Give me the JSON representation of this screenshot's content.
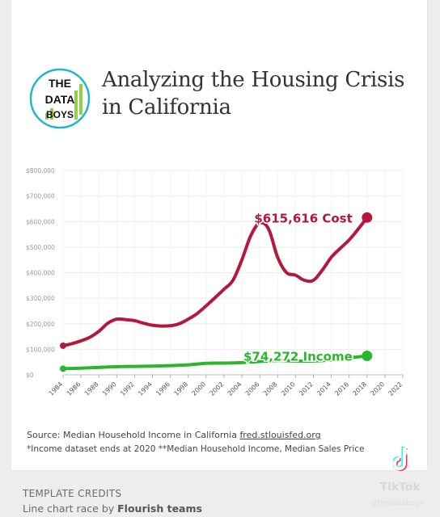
{
  "title": "Analyzing the Housing Crisis in California",
  "logo": {
    "lines": [
      "THE",
      "DATA",
      "BOYS"
    ]
  },
  "source": {
    "prefix": "Source: Median Household Income in California ",
    "link": "fred.stlouisfed.org"
  },
  "note": "*Income dataset ends at 2020 **Median Household Income, Median Sales Price",
  "credits": {
    "heading": "TEMPLATE CREDITS",
    "line_prefix": "Line chart race by ",
    "line_bold": "Flourish teams"
  },
  "watermark": {
    "brand": "TikTok",
    "handle": "@thedataboys"
  },
  "chart_data": {
    "type": "line",
    "x_ticks": [
      1984,
      1986,
      1988,
      1990,
      1992,
      1994,
      1996,
      1998,
      2000,
      2002,
      2004,
      2006,
      2008,
      2010,
      2012,
      2014,
      2016,
      2018,
      2020,
      2022
    ],
    "y_ticks": [
      0,
      100000,
      200000,
      300000,
      400000,
      500000,
      600000,
      700000,
      800000
    ],
    "y_tick_labels": [
      "$0",
      "$100,000",
      "$200,000",
      "$300,000",
      "$400,000",
      "$500,000",
      "$600,000",
      "$700,000",
      "$800,000"
    ],
    "xlim": [
      1984,
      2022
    ],
    "ylim": [
      0,
      800000
    ],
    "grid": true,
    "series": [
      {
        "label": "$615,616 Cost",
        "color": "#b5183a",
        "x": [
          1984,
          1985,
          1986,
          1987,
          1988,
          1989,
          1990,
          1991,
          1992,
          1993,
          1994,
          1995,
          1996,
          1997,
          1998,
          1999,
          2000,
          2001,
          2002,
          2003,
          2004,
          2005,
          2006,
          2007,
          2008,
          2009,
          2010,
          2011,
          2012,
          2013,
          2014,
          2015,
          2016,
          2017,
          2018
        ],
        "values": [
          114000,
          122000,
          133000,
          147000,
          170000,
          202000,
          218000,
          216000,
          212000,
          202000,
          194000,
          191000,
          192000,
          200000,
          218000,
          240000,
          270000,
          302000,
          335000,
          370000,
          450000,
          545000,
          595000,
          570000,
          460000,
          400000,
          390000,
          370000,
          370000,
          410000,
          460000,
          495000,
          528000,
          570000,
          615616
        ]
      },
      {
        "label": "$74,272 Income",
        "color": "#2db52d",
        "x": [
          1984,
          1986,
          1988,
          1990,
          1992,
          1994,
          1996,
          1998,
          2000,
          2002,
          2004,
          2006,
          2008,
          2010,
          2012,
          2014,
          2016,
          2018
        ],
        "values": [
          24000,
          26000,
          29000,
          32000,
          33000,
          34000,
          36000,
          39000,
          45000,
          46000,
          48000,
          52000,
          56000,
          54000,
          54000,
          58000,
          66000,
          74272
        ]
      }
    ]
  }
}
